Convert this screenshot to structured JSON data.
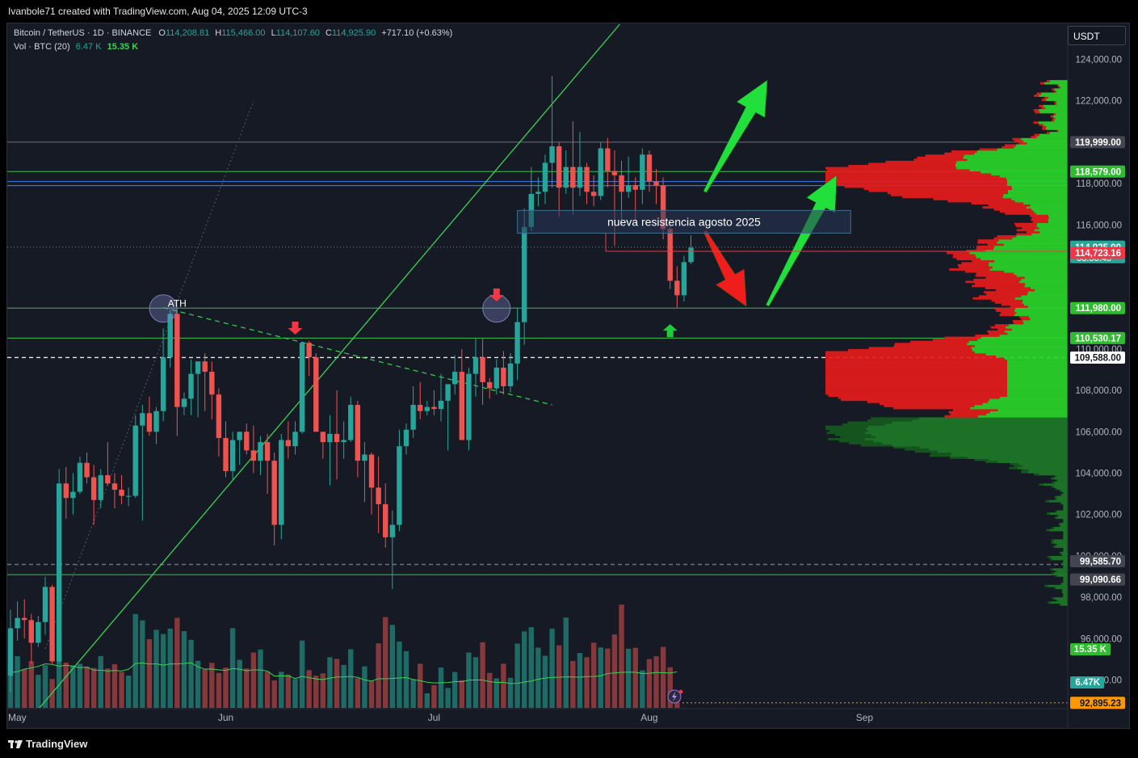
{
  "header": {
    "credit": "Ivanbole71 created with TradingView.com, Aug 04, 2025 12:09 UTC-3"
  },
  "legend": {
    "symbol": "Bitcoin / TetherUS · 1D · BINANCE",
    "open_label": "O",
    "open": "114,208.81",
    "high_label": "H",
    "high": "115,466.00",
    "low_label": "L",
    "low": "114,107.60",
    "close_label": "C",
    "close": "114,925.90",
    "change": "+717.10 (+0.63%)",
    "vol_label": "Vol · BTC (20)",
    "vol_value": "6.47 K",
    "vol_ma": "15.35 K"
  },
  "unit": "USDT",
  "footer": {
    "brand": "TradingView"
  },
  "colors": {
    "up": "#26a69a",
    "down": "#ef5350",
    "background": "#161a25",
    "line_green": "#39d353",
    "arrow_green": "#22e03c",
    "arrow_red": "#f01d1d",
    "volume_profile_up": "#29d62a",
    "volume_profile_down": "#e81c1c"
  },
  "chart_data": {
    "type": "candlestick",
    "symbol": "BTCUSDT",
    "timeframe": "1D",
    "price_axis": {
      "ylim": [
        91500,
        126200
      ],
      "ticks": [
        124000,
        122000,
        118000,
        116000,
        108000,
        106000,
        104000,
        102000,
        98000,
        96000
      ],
      "tick_labels": [
        "124,000.00",
        "122,000.00",
        "118,000.00",
        "116,000.00",
        "108,000.00",
        "106,000.00",
        "104,000.00",
        "102,000.00",
        "98,000.00",
        "96,000.00"
      ],
      "partial_labels": [
        {
          "value": 110000,
          "label": "110,000.00"
        },
        {
          "value": 100000,
          "label": "100,000.00"
        },
        {
          "value": 94000,
          "label": "94,000.00"
        }
      ]
    },
    "time_axis": {
      "labels": [
        {
          "label": "May",
          "day": 0
        },
        {
          "label": "Jun",
          "day": 31
        },
        {
          "label": "Jul",
          "day": 61
        },
        {
          "label": "Aug",
          "day": 92
        },
        {
          "label": "Sep",
          "day": 123
        }
      ]
    },
    "horizontal_levels": [
      {
        "value": 119999.0,
        "label": "119,999.00",
        "color": "#787b86",
        "badge": "#434651"
      },
      {
        "value": 118579.0,
        "label": "118,579.00",
        "color": "#39d353",
        "badge": "#2ebd2e"
      },
      {
        "value": 111980.0,
        "label": "111,980.00",
        "color": "#39d353",
        "badge": "#2ebd2e"
      },
      {
        "value": 110530.17,
        "label": "110,530.17",
        "color": "#39d353",
        "badge": "#2ebd2e"
      },
      {
        "value": 109588.0,
        "label": "109,588.00",
        "color": "#ffffff",
        "badge": "#ffffff",
        "dashed": true
      },
      {
        "value": 99585.7,
        "label": "99,585.70",
        "color": "#787b86",
        "badge": "#434651",
        "dashed": true
      },
      {
        "value": 99090.66,
        "label": "99,090.66",
        "color": "#39d353",
        "badge": "#434651"
      }
    ],
    "blue_levels": [
      118100,
      117900
    ],
    "price_badges": [
      {
        "value": 114925.9,
        "label": "114,925.90",
        "sub": "08:50:45",
        "color": "#26a69a"
      },
      {
        "value": 114723.16,
        "label": "114,723.16",
        "color": "#f23645"
      },
      {
        "value": 92895.23,
        "label": "92,895.23",
        "color": "#ff9800"
      }
    ],
    "volume_badges": [
      {
        "label": "15.35 K",
        "color": "#2ebd2e"
      },
      {
        "label": "6.47K",
        "color": "#26a69a"
      }
    ],
    "candles": [
      [
        94200,
        97400,
        93400,
        96500
      ],
      [
        96500,
        97800,
        95900,
        97000
      ],
      [
        97000,
        97900,
        96000,
        96900
      ],
      [
        96900,
        97200,
        94800,
        95800
      ],
      [
        95800,
        97100,
        95600,
        96800
      ],
      [
        96800,
        99000,
        96200,
        98500
      ],
      [
        98500,
        98600,
        94800,
        94900
      ],
      [
        94900,
        104200,
        94800,
        103500
      ],
      [
        103500,
        104300,
        101800,
        102800
      ],
      [
        102800,
        104000,
        102000,
        103100
      ],
      [
        103100,
        104800,
        103000,
        104500
      ],
      [
        104500,
        105000,
        103500,
        103800
      ],
      [
        103800,
        104400,
        101500,
        102700
      ],
      [
        102700,
        104200,
        102300,
        103900
      ],
      [
        103900,
        105500,
        103400,
        103500
      ],
      [
        103500,
        104000,
        102300,
        103200
      ],
      [
        103200,
        103900,
        102500,
        102900
      ],
      [
        102900,
        103300,
        102400,
        102900
      ],
      [
        102900,
        106800,
        102800,
        106300
      ],
      [
        106300,
        107300,
        101700,
        106900
      ],
      [
        106900,
        107700,
        105800,
        106000
      ],
      [
        106000,
        107200,
        105400,
        107000
      ],
      [
        107000,
        111000,
        106500,
        109600
      ],
      [
        109600,
        111900,
        109100,
        111700
      ],
      [
        111700,
        111900,
        105800,
        107200
      ],
      [
        107200,
        107900,
        106800,
        107600
      ],
      [
        107600,
        109500,
        106800,
        108800
      ],
      [
        108800,
        109200,
        106700,
        109400
      ],
      [
        109400,
        109800,
        107000,
        108900
      ],
      [
        108900,
        109400,
        106600,
        107800
      ],
      [
        107800,
        108100,
        104800,
        105700
      ],
      [
        105700,
        106500,
        103800,
        104100
      ],
      [
        104100,
        106000,
        103700,
        105600
      ],
      [
        105600,
        106000,
        104400,
        106000
      ],
      [
        106000,
        106400,
        104900,
        105100
      ],
      [
        105100,
        106300,
        104000,
        104600
      ],
      [
        104600,
        105800,
        103900,
        105500
      ],
      [
        105500,
        105900,
        103000,
        104600
      ],
      [
        104600,
        105000,
        100500,
        101500
      ],
      [
        101500,
        105900,
        100800,
        105600
      ],
      [
        105600,
        106500,
        104700,
        105300
      ],
      [
        105300,
        106500,
        104900,
        106000
      ],
      [
        106000,
        110300,
        105900,
        110300
      ],
      [
        110300,
        110400,
        108700,
        109600
      ],
      [
        109600,
        109800,
        106200,
        106000
      ],
      [
        106000,
        106000,
        104700,
        105500
      ],
      [
        105500,
        106800,
        103400,
        105900
      ],
      [
        105900,
        108000,
        103700,
        105500
      ],
      [
        105500,
        106500,
        104700,
        105600
      ],
      [
        105600,
        107700,
        105500,
        107300
      ],
      [
        107300,
        107500,
        103800,
        104600
      ],
      [
        104600,
        105500,
        102600,
        104900
      ],
      [
        104900,
        105000,
        102000,
        103300
      ],
      [
        103300,
        104800,
        101100,
        102500
      ],
      [
        102500,
        103500,
        100400,
        100900
      ],
      [
        100900,
        102200,
        98400,
        101500
      ],
      [
        101500,
        106100,
        101200,
        105300
      ],
      [
        105300,
        106400,
        104900,
        106100
      ],
      [
        106100,
        108200,
        105700,
        107300
      ],
      [
        107300,
        108400,
        106600,
        107000
      ],
      [
        107000,
        107500,
        106800,
        107200
      ],
      [
        107200,
        108000,
        106800,
        107100
      ],
      [
        107100,
        108800,
        106500,
        107500
      ],
      [
        107500,
        108300,
        105100,
        108300
      ],
      [
        108300,
        109700,
        107800,
        108900
      ],
      [
        108900,
        110000,
        105700,
        105600
      ],
      [
        105600,
        109100,
        105100,
        108800
      ],
      [
        108800,
        110500,
        107700,
        109600
      ],
      [
        109600,
        110500,
        107300,
        108400
      ],
      [
        108400,
        108600,
        107600,
        108100
      ],
      [
        108100,
        109500,
        107800,
        109100
      ],
      [
        109100,
        109900,
        107800,
        108200
      ],
      [
        108200,
        109800,
        107900,
        109300
      ],
      [
        109300,
        112000,
        108500,
        111300
      ],
      [
        111300,
        116800,
        110200,
        115900
      ],
      [
        115900,
        118800,
        115700,
        117500
      ],
      [
        117500,
        118300,
        116900,
        117600
      ],
      [
        117600,
        119400,
        117000,
        119000
      ],
      [
        119000,
        123200,
        117800,
        119800
      ],
      [
        119800,
        120000,
        116400,
        117800
      ],
      [
        117800,
        119600,
        117500,
        118800
      ],
      [
        118800,
        121000,
        116500,
        117800
      ],
      [
        117800,
        120500,
        117400,
        118800
      ],
      [
        118800,
        119000,
        117000,
        117600
      ],
      [
        117600,
        118400,
        116900,
        117400
      ],
      [
        117400,
        120000,
        117200,
        119700
      ],
      [
        119700,
        120200,
        117800,
        118600
      ],
      [
        118600,
        119600,
        115000,
        118400
      ],
      [
        118400,
        119100,
        116000,
        117600
      ],
      [
        117600,
        119300,
        117300,
        117900
      ],
      [
        117900,
        118300,
        116200,
        117700
      ],
      [
        117700,
        119700,
        117000,
        119400
      ],
      [
        119400,
        119600,
        117600,
        118100
      ],
      [
        118100,
        118700,
        117000,
        117900
      ],
      [
        117900,
        118300,
        115300,
        115800
      ],
      [
        115800,
        116000,
        112900,
        113300
      ],
      [
        113300,
        114000,
        112000,
        112600
      ],
      [
        112600,
        114500,
        112300,
        114200
      ],
      [
        114200,
        115500,
        114100,
        114900
      ]
    ],
    "volume": {
      "ylim": [
        0,
        62000
      ],
      "ma": [
        15120,
        15400,
        16530,
        17070,
        17720,
        18770,
        18570,
        17760,
        18180,
        17780,
        17150,
        17380,
        16050,
        16080,
        15700,
        15990,
        15700,
        16490,
        18890,
        19150,
        18690,
        18760,
        18230,
        18720,
        18750,
        18960,
        19180,
        17510,
        16520,
        16560,
        16190,
        15960,
        16800,
        16490,
        15810,
        16210,
        16210,
        15670,
        13580,
        13710,
        13630,
        12530,
        13420,
        12880,
        12340,
        12070,
        12710,
        13170,
        13230,
        13370,
        13010,
        11910,
        11460,
        12460,
        12380,
        12580,
        12750,
        12920,
        12110,
        11580,
        10940,
        10620,
        10710,
        10810,
        11180,
        11180,
        11820,
        11940,
        11900,
        11200,
        10840,
        10900,
        10380,
        10460,
        11020,
        11460,
        12220,
        12690,
        13000,
        13080,
        13230,
        13180,
        13070,
        13330,
        13400,
        13640,
        14660,
        14900,
        15170,
        15230,
        15180,
        14650,
        14750,
        15130,
        14980,
        14850,
        15350
      ],
      "values": [
        19000,
        22000,
        16500,
        19900,
        14100,
        18200,
        12300,
        26200,
        19300,
        18100,
        18800,
        17600,
        17000,
        22100,
        16800,
        18600,
        15300,
        13800,
        40000,
        37300,
        29300,
        33300,
        31500,
        33800,
        38400,
        32700,
        29000,
        20100,
        16500,
        19200,
        14900,
        17200,
        34000,
        20500,
        16800,
        23600,
        24900,
        15400,
        11700,
        15400,
        14200,
        12300,
        28700,
        16100,
        13700,
        14700,
        21600,
        20900,
        18300,
        25000,
        12600,
        17700,
        11500,
        27500,
        38700,
        35400,
        28300,
        24200,
        12100,
        18800,
        6200,
        9700,
        17200,
        8500,
        15300,
        11800,
        23600,
        21600,
        28000,
        14900,
        12600,
        18800,
        12800,
        27400,
        32600,
        34400,
        25700,
        22200,
        33800,
        26700,
        38500,
        20000,
        23400,
        21600,
        27800,
        25800,
        25300,
        31300,
        44000,
        25200,
        25600,
        16000,
        20800,
        22000,
        26000,
        17300,
        6470
      ]
    },
    "volume_profile": {
      "price_range": [
        97600,
        123000
      ],
      "bins": 254,
      "total_peaks": [
        [
          118300,
          310
        ],
        [
          108400,
          265
        ],
        [
          109400,
          250
        ],
        [
          105900,
          285
        ],
        [
          114500,
          120
        ],
        [
          121800,
          20
        ],
        [
          112500,
          80
        ]
      ],
      "down_peaks": [
        [
          118100,
          0.6
        ],
        [
          108000,
          0.6
        ],
        [
          109400,
          0.55
        ],
        [
          116400,
          0.3
        ],
        [
          113000,
          0.4
        ]
      ],
      "up_start": 106700
    },
    "trendlines": [
      {
        "type": "support",
        "points": [
          [
            0,
            91000
          ],
          [
            220,
            178000
          ]
        ],
        "color": "#39d353"
      },
      {
        "type": "dotted",
        "points": [
          [
            5,
            95500
          ],
          [
            35,
            122000
          ]
        ],
        "color": "#4a4f5c"
      },
      {
        "type": "dashed",
        "points": [
          [
            22,
            112000
          ],
          [
            78,
            107300
          ]
        ],
        "color": "#39d353"
      }
    ],
    "annotations": [
      {
        "text": "ATH",
        "day": 23,
        "price": 112200
      },
      {
        "text": "nueva resistencia agosto 2025",
        "day0": 73,
        "day1": 121,
        "price0": 116700,
        "price1": 115600
      }
    ],
    "markers": [
      {
        "shape": "arrow_down",
        "color": "red",
        "day": 41,
        "price": 110700
      },
      {
        "shape": "arrow_down",
        "color": "red",
        "day": 70,
        "price": 112300
      },
      {
        "shape": "arrow_up",
        "color": "green",
        "day": 95,
        "price": 111200
      },
      {
        "shape": "circle",
        "day": 22,
        "price": 111960
      },
      {
        "shape": "circle",
        "day": 70,
        "price": 111960
      }
    ],
    "projections": [
      {
        "color": "green",
        "from": [
          100,
          117600
        ],
        "to": [
          109,
          123000
        ]
      },
      {
        "color": "red",
        "from": [
          100,
          115700
        ],
        "to": [
          106,
          112050
        ]
      },
      {
        "color": "green",
        "from": [
          109,
          112100
        ],
        "to": [
          119,
          118400
        ]
      }
    ]
  }
}
